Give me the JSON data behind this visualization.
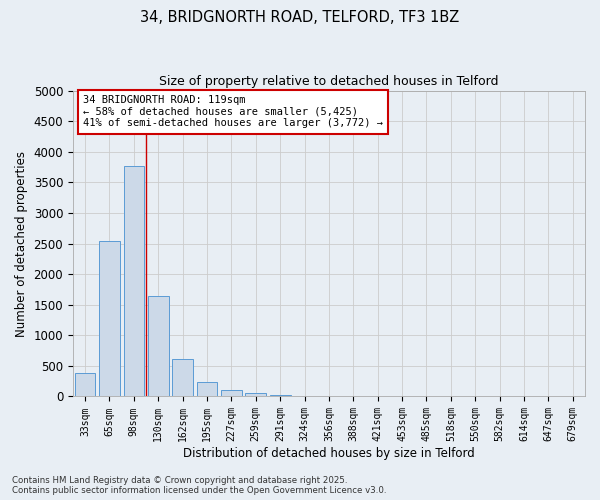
{
  "title_line1": "34, BRIDGNORTH ROAD, TELFORD, TF3 1BZ",
  "title_line2": "Size of property relative to detached houses in Telford",
  "xlabel": "Distribution of detached houses by size in Telford",
  "ylabel": "Number of detached properties",
  "categories": [
    "33sqm",
    "65sqm",
    "98sqm",
    "130sqm",
    "162sqm",
    "195sqm",
    "227sqm",
    "259sqm",
    "291sqm",
    "324sqm",
    "356sqm",
    "388sqm",
    "421sqm",
    "453sqm",
    "485sqm",
    "518sqm",
    "550sqm",
    "582sqm",
    "614sqm",
    "647sqm",
    "679sqm"
  ],
  "values": [
    390,
    2540,
    3760,
    1650,
    610,
    230,
    100,
    55,
    30,
    0,
    0,
    0,
    0,
    0,
    0,
    0,
    0,
    0,
    0,
    0,
    0
  ],
  "bar_color": "#ccd9e8",
  "bar_edge_color": "#5b9bd5",
  "vline_color": "#cc0000",
  "vline_x_index": 2.5,
  "annotation_text": "34 BRIDGNORTH ROAD: 119sqm\n← 58% of detached houses are smaller (5,425)\n41% of semi-detached houses are larger (3,772) →",
  "annotation_box_color": "#ffffff",
  "annotation_box_edge": "#cc0000",
  "ylim": [
    0,
    5000
  ],
  "yticks": [
    0,
    500,
    1000,
    1500,
    2000,
    2500,
    3000,
    3500,
    4000,
    4500,
    5000
  ],
  "grid_color": "#cccccc",
  "background_color": "#e8eef4",
  "footer_line1": "Contains HM Land Registry data © Crown copyright and database right 2025.",
  "footer_line2": "Contains public sector information licensed under the Open Government Licence v3.0."
}
